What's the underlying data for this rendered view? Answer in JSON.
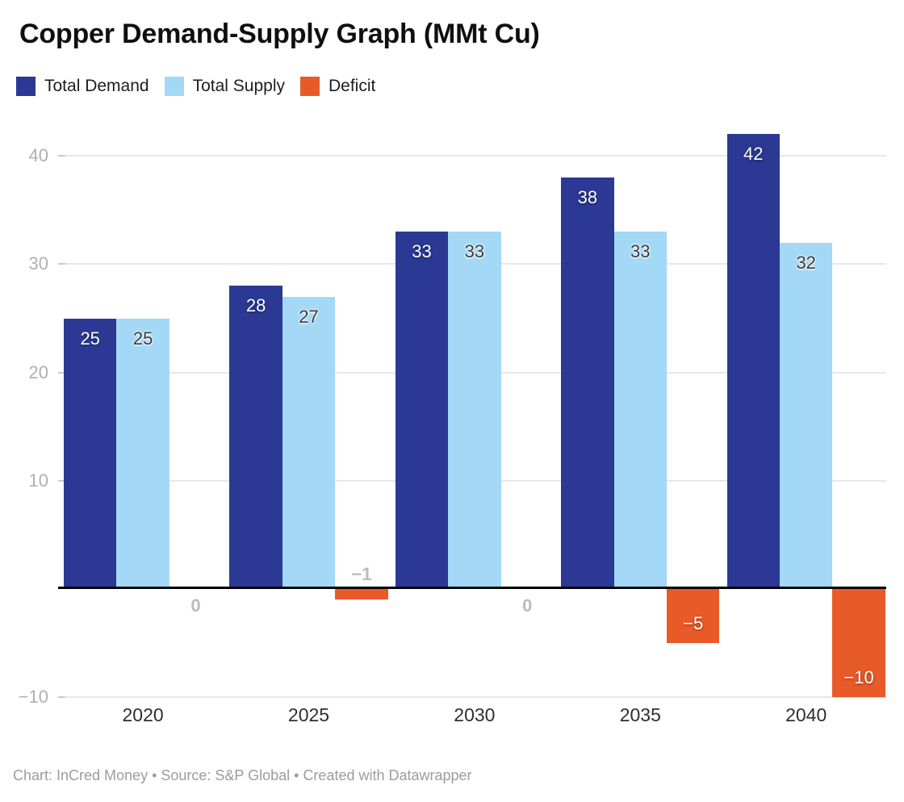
{
  "title": "Copper Demand-Supply Graph (MMt Cu)",
  "footer": "Chart: InCred Money • Source: S&P Global • Created with Datawrapper",
  "chart_data": {
    "type": "bar",
    "title": "Copper Demand-Supply Graph (MMt Cu)",
    "categories": [
      "2020",
      "2025",
      "2030",
      "2035",
      "2040"
    ],
    "series": [
      {
        "name": "Total Demand",
        "color": "#2b3994",
        "values": [
          25,
          28,
          33,
          38,
          42
        ]
      },
      {
        "name": "Total Supply",
        "color": "#a3d8f6",
        "values": [
          25,
          27,
          33,
          33,
          32
        ]
      },
      {
        "name": "Deficit",
        "color": "#e85a28",
        "values": [
          0,
          -1,
          0,
          -5,
          -10
        ]
      }
    ],
    "xlabel": "",
    "ylabel": "",
    "ylim": [
      -10,
      44
    ],
    "yticks": [
      40,
      30,
      20,
      10,
      -10
    ],
    "grid": true,
    "legend_position": "top",
    "zero_axis_color": "#000000",
    "gridline_color": "#e7e7e7",
    "tick_label_color": "#b0b0b0",
    "label_color_on_dark": "#ffffff",
    "label_color_on_light": "#3a3a3a",
    "label_color_outside": "#bbbbbb"
  }
}
